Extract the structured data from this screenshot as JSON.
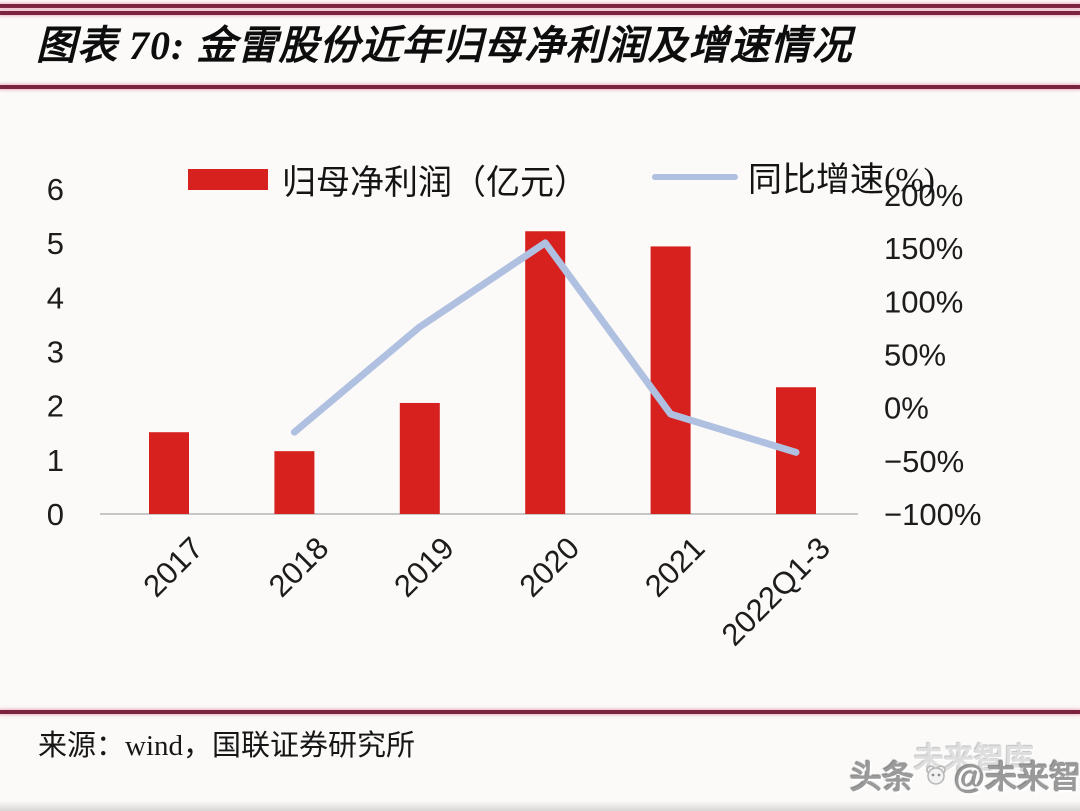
{
  "header": {
    "title": "图表 70: 金雷股份近年归母净利润及增速情况",
    "rule_color": "#7c2340"
  },
  "legend": [
    {
      "label": "归母净利润（亿元）",
      "color": "#d7211f",
      "type": "bar"
    },
    {
      "label": "同比增速(%)",
      "color": "#afc0e0",
      "type": "line"
    }
  ],
  "chart_data": {
    "type": "bar+line combo",
    "categories": [
      "2017",
      "2018",
      "2019",
      "2020",
      "2021",
      "2022Q1-3"
    ],
    "series": [
      {
        "name": "归母净利润（亿元）",
        "type": "bar",
        "axis": "left",
        "color": "#d7211f",
        "values": [
          1.51,
          1.16,
          2.05,
          5.22,
          4.94,
          2.34
        ]
      },
      {
        "name": "同比增速(%)",
        "type": "line",
        "axis": "right",
        "color": "#afc0e0",
        "values": [
          null,
          -23,
          76,
          155,
          -6,
          -42
        ]
      }
    ],
    "left_axis": {
      "min": 0,
      "max": 6,
      "ticks": [
        "6",
        "5",
        "4",
        "3",
        "2",
        "1",
        "0"
      ],
      "tick_values": [
        6,
        5,
        4,
        3,
        2,
        1,
        0
      ]
    },
    "right_axis": {
      "min": -100,
      "max": 200,
      "ticks": [
        "200%",
        "150%",
        "100%",
        "50%",
        "0%",
        "−50%",
        "−100%"
      ],
      "tick_values": [
        200,
        150,
        100,
        50,
        0,
        -50,
        -100
      ]
    },
    "grid": "off",
    "legend_position": "top",
    "x_label_rotation": 45
  },
  "footer": {
    "source": "来源：wind，国联证券研究所"
  },
  "watermark": {
    "ghost": "未来智库",
    "main_prefix": "头条",
    "main_suffix": "@未来智库"
  }
}
